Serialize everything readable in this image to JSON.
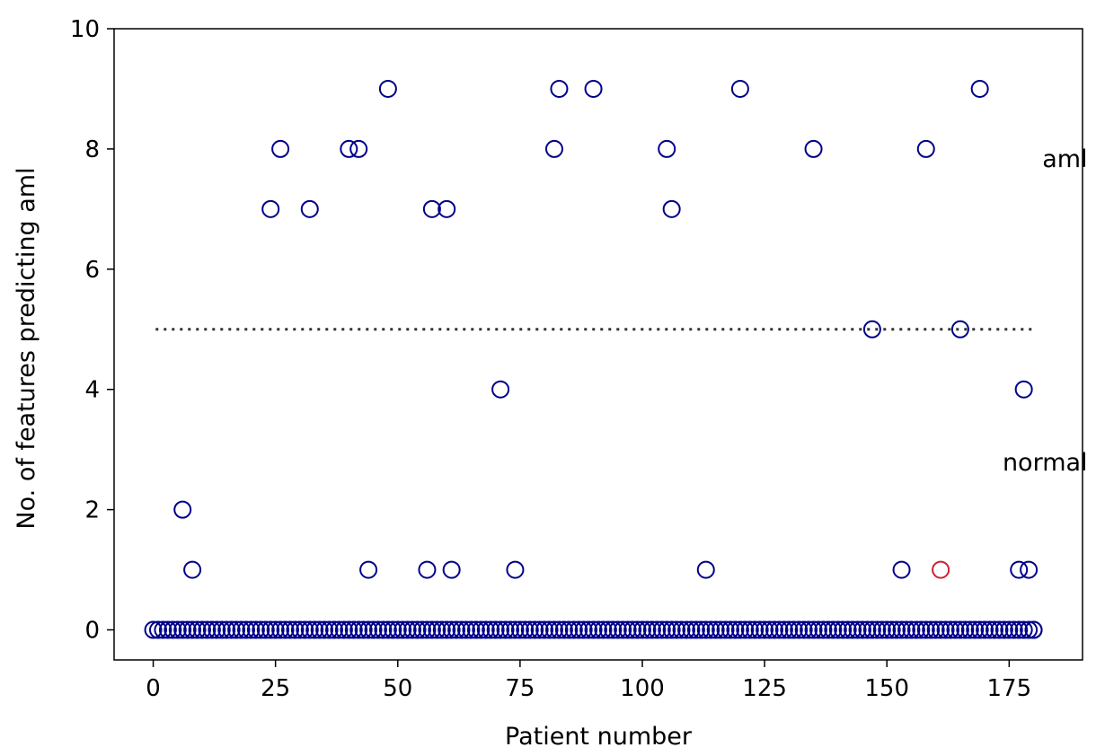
{
  "chart_data": {
    "type": "scatter",
    "xlabel": "Patient number",
    "ylabel": "No. of features predicting aml",
    "xlim": [
      -8,
      190
    ],
    "ylim": [
      -0.5,
      10
    ],
    "xticks": [
      "0",
      "25",
      "50",
      "75",
      "100",
      "125",
      "150",
      "175"
    ],
    "yticks": [
      "0",
      "2",
      "4",
      "6",
      "8",
      "10"
    ],
    "grid": false,
    "threshold": {
      "y": 5,
      "x_start": 0.5,
      "x_end": 180.5,
      "style": "dotted",
      "color": "#333333"
    },
    "annotations": [
      {
        "text": "aml",
        "x": 180,
        "y": 7.7
      },
      {
        "text": "normal",
        "x": 180,
        "y": 2.65
      }
    ],
    "marker": {
      "shape": "open-circle",
      "color": "#00008b"
    },
    "highlight_color": "#cc2233",
    "zero_points_x_range": [
      0,
      180
    ],
    "series": [
      {
        "points": [
          {
            "x": 24,
            "y": 7
          },
          {
            "x": 26,
            "y": 8
          },
          {
            "x": 32,
            "y": 7
          },
          {
            "x": 40,
            "y": 8
          },
          {
            "x": 42,
            "y": 8
          },
          {
            "x": 48,
            "y": 9
          },
          {
            "x": 57,
            "y": 7
          },
          {
            "x": 60,
            "y": 7
          },
          {
            "x": 82,
            "y": 8
          },
          {
            "x": 83,
            "y": 9
          },
          {
            "x": 90,
            "y": 9
          },
          {
            "x": 105,
            "y": 8
          },
          {
            "x": 106,
            "y": 7
          },
          {
            "x": 120,
            "y": 9
          },
          {
            "x": 135,
            "y": 8
          },
          {
            "x": 147,
            "y": 5
          },
          {
            "x": 158,
            "y": 8
          },
          {
            "x": 165,
            "y": 5
          },
          {
            "x": 169,
            "y": 9
          },
          {
            "x": 71,
            "y": 4
          },
          {
            "x": 178,
            "y": 4
          },
          {
            "x": 6,
            "y": 2
          },
          {
            "x": 8,
            "y": 1
          },
          {
            "x": 44,
            "y": 1
          },
          {
            "x": 56,
            "y": 1
          },
          {
            "x": 61,
            "y": 1
          },
          {
            "x": 74,
            "y": 1
          },
          {
            "x": 113,
            "y": 1
          },
          {
            "x": 153,
            "y": 1
          },
          {
            "x": 177,
            "y": 1
          },
          {
            "x": 179,
            "y": 1
          },
          {
            "x": 180,
            "y": 0
          }
        ]
      },
      {
        "highlight": true,
        "points": [
          {
            "x": 161,
            "y": 1
          }
        ]
      }
    ]
  }
}
